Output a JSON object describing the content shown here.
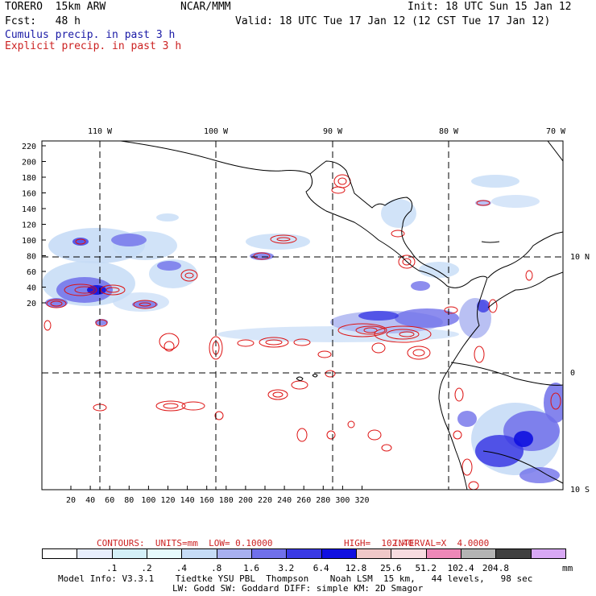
{
  "header": {
    "model": "TORERO  15km ARW",
    "org": "NCAR/MMM",
    "init": "Init: 18 UTC Sun 15 Jan 12",
    "fcst": "Fcst:   48 h",
    "valid": "Valid: 18 UTC Tue 17 Jan 12 (12 CST Tue 17 Jan 12)",
    "legend_cumulus": "Cumulus precip. in past 3 h",
    "legend_explicit": "Explicit precip. in past 3 h"
  },
  "colors": {
    "cumulus_text": "#1a1aa6",
    "explicit_text": "#cc2222",
    "contour": "#dd1111",
    "grid": "#000000"
  },
  "map": {
    "top_labels": [
      "110 W",
      "100 W",
      "90 W",
      "80 W",
      "70 W"
    ],
    "right_labels": [
      "10 N",
      "0",
      "10 S"
    ],
    "y_ticks": [
      "220",
      "200",
      "180",
      "160",
      "140",
      "120",
      "100",
      "80",
      "60",
      "40",
      "20"
    ],
    "x_ticks": [
      "20",
      "40",
      "60",
      "80",
      "100",
      "120",
      "140",
      "160",
      "180",
      "200",
      "220",
      "240",
      "260",
      "280",
      "300",
      "320"
    ]
  },
  "contours_line": {
    "label": "CONTOURS:  UNITS=mm  LOW= 0.10000",
    "high": "HIGH=  102.40",
    "interval": "INTERVAL=X  4.0000"
  },
  "colorbar": {
    "colors": [
      "#ffffff",
      "#e8eefc",
      "#d4f0f8",
      "#e6fafc",
      "#c6dcf6",
      "#a8b0f0",
      "#7070ea",
      "#3a3ae4",
      "#1010e0",
      "#f0c8c8",
      "#f8dce0",
      "#ee88b8",
      "#b4b4b4",
      "#404040",
      "#d8a8f4"
    ],
    "labels": [
      ".1",
      ".2",
      ".4",
      ".8",
      "1.6",
      "3.2",
      "6.4",
      "12.8",
      "25.6",
      "51.2",
      "102.4",
      "204.8"
    ],
    "units": "mm"
  },
  "footer": {
    "line1": "Model Info: V3.3.1    Tiedtke YSU PBL  Thompson    Noah LSM  15 km,   44 levels,   98 sec",
    "line2": "LW: Godd SW: Goddard DIFF: simple KM: 2D Smagor"
  }
}
